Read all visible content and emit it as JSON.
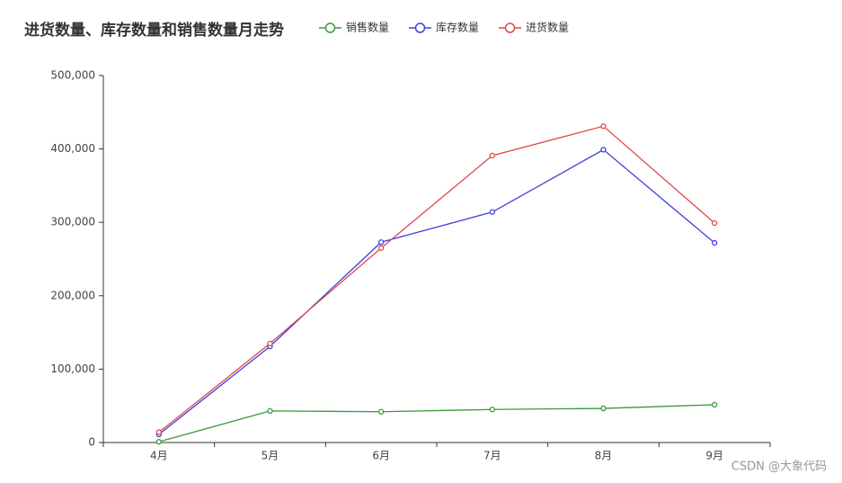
{
  "chart_data": {
    "type": "line",
    "title": "进货数量、库存数量和销售数量月走势",
    "categories": [
      "4月",
      "5月",
      "6月",
      "7月",
      "8月",
      "9月"
    ],
    "series": [
      {
        "name": "销售数量",
        "color": "#3a9a3a",
        "values": [
          1000,
          43000,
          42000,
          45000,
          46500,
          51500
        ]
      },
      {
        "name": "库存数量",
        "color": "#4040e0",
        "values": [
          11000,
          131000,
          273000,
          314000,
          399000,
          272000
        ]
      },
      {
        "name": "进货数量",
        "color": "#e04848",
        "values": [
          14000,
          135000,
          265000,
          391000,
          431000,
          299000
        ]
      }
    ],
    "ylim": [
      0,
      500000
    ],
    "yticks": [
      0,
      {
        "value": 100000,
        "label": "100,000"
      },
      {
        "value": 200000,
        "label": "200,000"
      },
      {
        "value": 300000,
        "label": "300,000"
      },
      {
        "value": 400000,
        "label": "400,000"
      },
      {
        "value": 500000,
        "label": "500,000"
      }
    ],
    "grid": false,
    "legend": "top",
    "watermark": "CSDN @大象代码"
  }
}
